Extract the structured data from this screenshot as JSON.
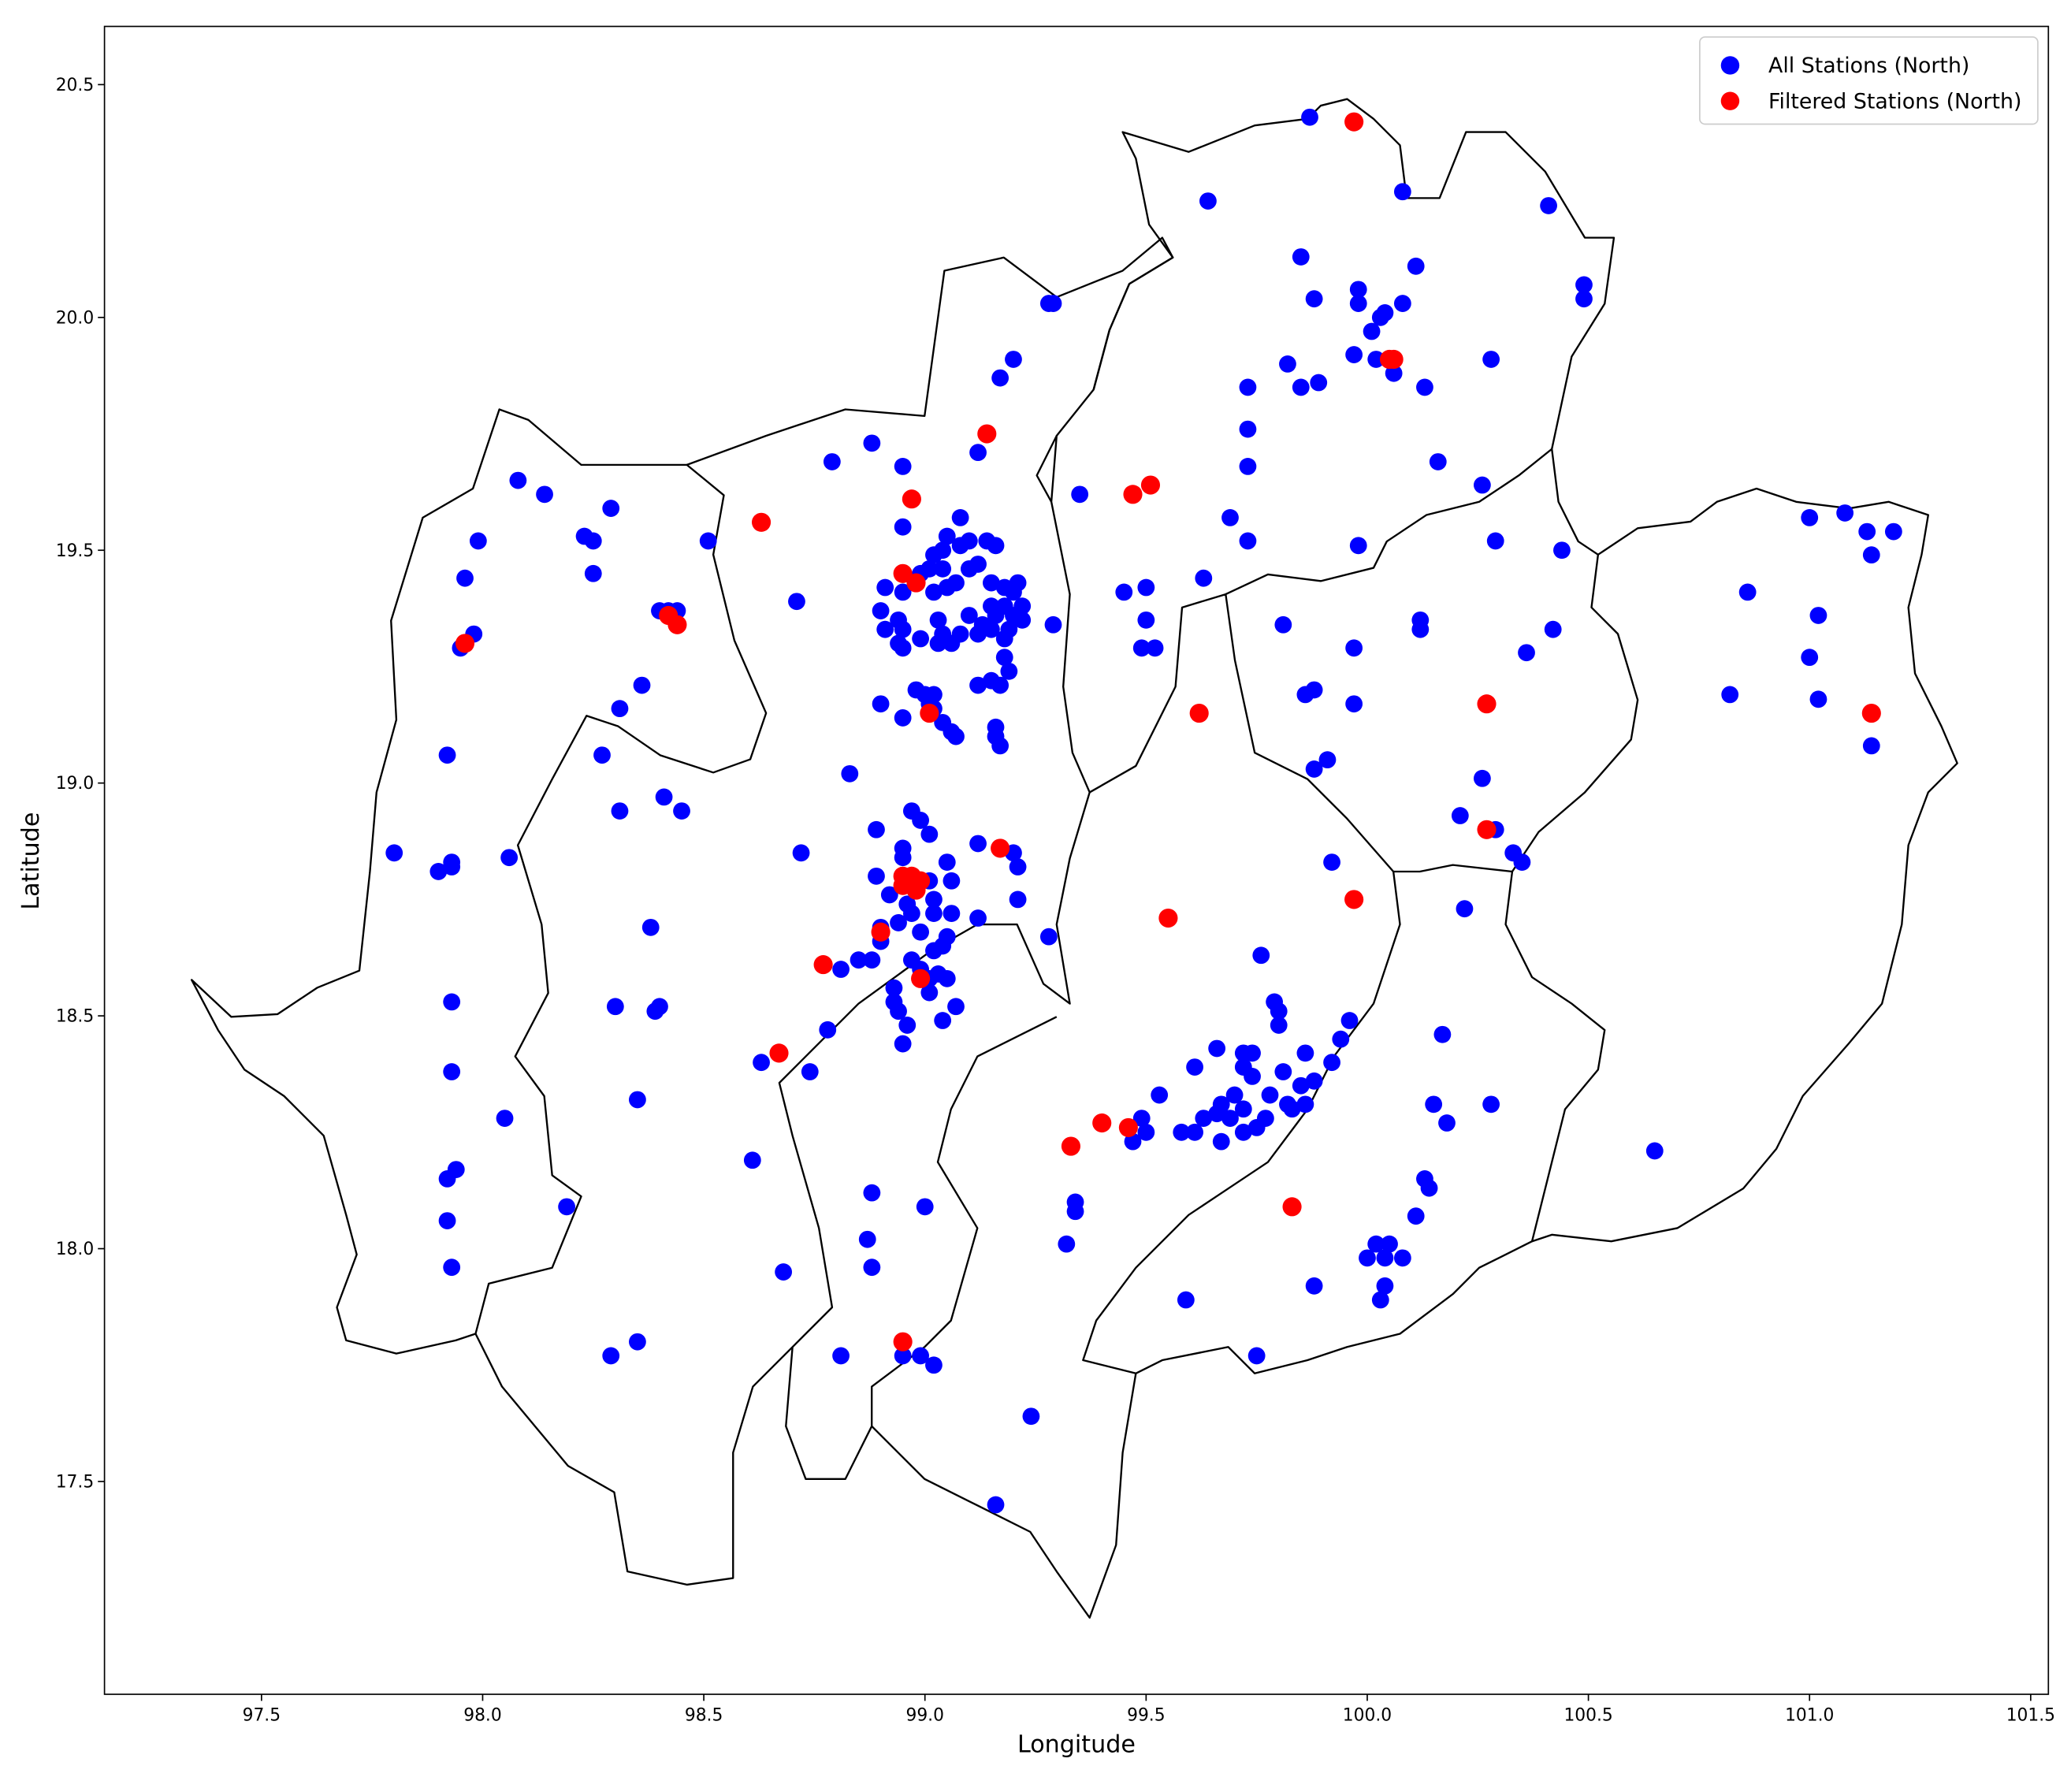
{
  "chart_data": {
    "type": "scatter",
    "xlabel": "Longitude",
    "ylabel": "Latitude",
    "xlim": [
      97.145,
      101.54
    ],
    "ylim": [
      17.043,
      20.625
    ],
    "xticks": [
      97.5,
      {
        "value": 98,
        "label": "98.0"
      },
      98.5,
      {
        "value": 99,
        "label": "99.0"
      },
      99.5,
      {
        "value": 100,
        "label": "100.0"
      },
      100.5,
      {
        "value": 101,
        "label": "101.0"
      },
      101.5
    ],
    "yticks": [
      17.5,
      {
        "value": 18,
        "label": "18.0"
      },
      18.5,
      {
        "value": 19,
        "label": "19.0"
      },
      19.5,
      {
        "value": 20,
        "label": "20.0"
      },
      20.5
    ],
    "legend": "upper right",
    "series": [
      {
        "name": "All Stations (North)",
        "color": "blue",
        "x": [
          99.87,
          99.64,
          100.08,
          100.41,
          99.85,
          100.11,
          100.49,
          100.49,
          99.88,
          99.98,
          99.98,
          100.08,
          100.04,
          100.03,
          100.01,
          99.97,
          100.02,
          100.06,
          100.28,
          99.82,
          99.89,
          99.85,
          99.73,
          100.13,
          99.73,
          99.73,
          100.16,
          100.26,
          99.69,
          99.73,
          99.98,
          100.29,
          100.44,
          99.63,
          99.5,
          99.45,
          99.5,
          99.81,
          100.12,
          100.12,
          100.42,
          99.97,
          100.36,
          99.49,
          99.52,
          99.88,
          99.86,
          99.97,
          100.27,
          99.91,
          99.88,
          100.26,
          100.21,
          100.29,
          100.33,
          100.35,
          99.92,
          100.22,
          100.86,
          101.0,
          101.08,
          101.13,
          101.19,
          101.14,
          101.02,
          101.0,
          100.82,
          101.02,
          101.14,
          100.65,
          99.76,
          99.79,
          99.8,
          99.8,
          99.96,
          99.94,
          99.92,
          99.86,
          99.81,
          99.85,
          99.88,
          99.82,
          99.86,
          99.83,
          99.78,
          99.74,
          99.72,
          99.72,
          99.66,
          99.61,
          99.74,
          99.7,
          99.67,
          99.66,
          99.63,
          99.61,
          99.69,
          99.72,
          99.72,
          99.77,
          99.75,
          99.67,
          99.58,
          99.53,
          99.49,
          99.5,
          99.47,
          100.17,
          100.15,
          100.18,
          100.28,
          100.13,
          100.14,
          100.11,
          100.02,
          100.05,
          100.0,
          100.04,
          100.08,
          100.04,
          100.03,
          99.88,
          99.59,
          99.75,
          99.34,
          99.34,
          99.32,
          99.24,
          99.16,
          99.02,
          98.99,
          98.95,
          98.81,
          99.0,
          98.88,
          98.87,
          98.88,
          98.68,
          98.61,
          98.63,
          98.74,
          98.78,
          98.81,
          98.85,
          98.88,
          98.9,
          98.9,
          98.89,
          98.92,
          98.95,
          98.95,
          98.95,
          98.89,
          98.97,
          98.99,
          99.01,
          99.01,
          99.02,
          99.02,
          98.99,
          98.97,
          98.96,
          98.94,
          99.02,
          99.05,
          99.04,
          99.06,
          99.06,
          99.05,
          99.12,
          99.12,
          99.2,
          99.21,
          99.21,
          99.28,
          98.97,
          98.99,
          99.01,
          99.03,
          99.05,
          99.07,
          99.04,
          98.93,
          98.93,
          98.94,
          98.96,
          98.95,
          99.01,
          98.83,
          98.72,
          98.9,
          98.95,
          98.98,
          99.0,
          99.02,
          99.01,
          99.02,
          99.04,
          99.06,
          99.07,
          99.16,
          99.16,
          99.17,
          99.12,
          99.15,
          99.17,
          99.19,
          99.18,
          99.18,
          99.19,
          99.12,
          99.15,
          99.16,
          99.15,
          99.18,
          99.2,
          99.22,
          99.22,
          99.2,
          99.18,
          99.21,
          99.15,
          99.16,
          99.14,
          99.1,
          99.08,
          99.05,
          99.04,
          99.08,
          99.1,
          99.12,
          99.07,
          99.05,
          99.02,
          99.01,
          98.99,
          99.02,
          99.04,
          98.95,
          98.95,
          98.91,
          98.9,
          98.94,
          98.95,
          98.91,
          98.94,
          98.95,
          98.99,
          99.03,
          99.04,
          99.03,
          99.06,
          99.08,
          99.1,
          99.13,
          99.29,
          98.95,
          98.88,
          98.79,
          99.12,
          99.17,
          99.2,
          99.28,
          99.29,
          99.35,
          98.71,
          98.51,
          98.23,
          98.25,
          98.25,
          98.29,
          98.14,
          98.08,
          97.99,
          97.96,
          97.98,
          97.95,
          98.4,
          98.42,
          98.44,
          98.36,
          98.31,
          98.27,
          97.92,
          98.31,
          98.41,
          98.45,
          98.06,
          97.93,
          97.93,
          97.9,
          97.8,
          98.38,
          98.4,
          98.39,
          98.3,
          97.93,
          97.93,
          98.35,
          98.05,
          97.94,
          97.92,
          97.92,
          97.93,
          98.19,
          98.35,
          98.29
        ],
        "values": [
          20.43,
          20.25,
          20.27,
          20.24,
          20.13,
          20.11,
          20.07,
          20.04,
          20.04,
          20.06,
          20.03,
          20.03,
          20.01,
          20.0,
          19.97,
          19.92,
          19.91,
          19.88,
          19.91,
          19.9,
          19.86,
          19.85,
          19.85,
          19.85,
          19.76,
          19.68,
          19.69,
          19.64,
          19.57,
          19.52,
          19.51,
          19.52,
          19.5,
          19.44,
          19.42,
          19.41,
          19.35,
          19.34,
          19.35,
          19.33,
          19.33,
          19.29,
          19.28,
          19.29,
          19.29,
          19.2,
          19.19,
          19.17,
          19.17,
          19.05,
          19.03,
          19.01,
          18.93,
          18.9,
          18.85,
          18.83,
          18.83,
          18.73,
          19.41,
          19.57,
          19.58,
          19.54,
          19.54,
          19.49,
          19.36,
          19.27,
          19.19,
          19.18,
          19.08,
          18.21,
          18.63,
          18.53,
          18.51,
          18.48,
          18.49,
          18.45,
          18.4,
          18.42,
          18.38,
          18.35,
          18.36,
          18.31,
          18.31,
          18.3,
          18.33,
          18.42,
          18.42,
          18.39,
          18.43,
          18.39,
          18.37,
          18.33,
          18.31,
          18.29,
          18.28,
          18.25,
          18.28,
          18.3,
          18.25,
          18.28,
          18.26,
          18.23,
          18.25,
          18.33,
          18.28,
          18.25,
          18.23,
          18.46,
          18.31,
          18.27,
          18.31,
          18.15,
          18.13,
          18.07,
          18.01,
          18.01,
          17.98,
          17.98,
          17.98,
          17.92,
          17.89,
          17.92,
          17.89,
          17.77,
          18.1,
          18.08,
          18.01,
          17.64,
          17.45,
          17.75,
          17.77,
          17.77,
          17.77,
          18.09,
          18.12,
          18.02,
          17.96,
          17.95,
          18.19,
          18.4,
          18.38,
          18.47,
          18.6,
          18.62,
          18.62,
          18.66,
          18.69,
          18.8,
          18.76,
          18.8,
          18.84,
          18.86,
          18.9,
          18.94,
          18.92,
          18.89,
          18.79,
          18.75,
          18.72,
          18.68,
          18.72,
          18.74,
          18.7,
          18.64,
          18.67,
          18.65,
          18.72,
          18.79,
          18.83,
          18.71,
          18.87,
          18.85,
          18.82,
          18.75,
          18.67,
          18.62,
          18.6,
          18.58,
          18.59,
          18.58,
          18.52,
          18.49,
          18.56,
          18.53,
          18.51,
          18.48,
          18.44,
          18.55,
          19.02,
          18.85,
          19.17,
          19.14,
          19.2,
          19.19,
          19.19,
          19.17,
          19.16,
          19.13,
          19.11,
          19.1,
          19.12,
          19.1,
          19.08,
          19.21,
          19.22,
          19.21,
          19.24,
          19.27,
          19.31,
          19.33,
          19.32,
          19.33,
          19.36,
          19.38,
          19.38,
          19.36,
          19.35,
          19.38,
          19.41,
          19.42,
          19.43,
          19.43,
          19.51,
          19.52,
          19.52,
          19.51,
          19.53,
          19.5,
          19.57,
          19.46,
          19.47,
          19.43,
          19.42,
          19.41,
          19.46,
          19.45,
          19.49,
          19.46,
          19.55,
          19.41,
          19.42,
          19.37,
          19.35,
          19.33,
          19.33,
          19.3,
          19.29,
          19.31,
          19.35,
          19.32,
          19.3,
          19.3,
          19.32,
          19.36,
          19.34,
          19.34,
          19.68,
          19.73,
          19.69,
          19.71,
          19.87,
          19.91,
          20.03,
          20.03,
          19.62,
          19.39,
          19.52,
          19.53,
          19.52,
          19.45,
          19.59,
          19.62,
          19.65,
          19.52,
          19.44,
          19.32,
          19.29,
          19.37,
          19.37,
          19.37,
          19.21,
          19.16,
          19.06,
          19.06,
          18.94,
          18.97,
          18.94,
          18.84,
          18.83,
          18.82,
          18.81,
          18.85,
          18.69,
          18.52,
          18.51,
          18.52,
          18.53,
          18.38,
          18.32,
          18.28,
          18.17,
          18.15,
          18.06,
          17.96,
          18.09,
          17.8,
          17.77
        ]
      },
      {
        "name": "Filtered Stations (North)",
        "color": "red",
        "x": [
          99.97,
          100.05,
          100.06,
          99.14,
          99.51,
          99.47,
          98.97,
          98.63,
          98.95,
          98.98,
          97.96,
          98.42,
          98.44,
          99.01,
          99.62,
          100.27,
          100.27,
          101.14,
          99.17,
          98.95,
          98.97,
          98.99,
          98.98,
          98.95,
          99.97,
          99.55,
          98.9,
          98.77,
          98.99,
          98.67,
          99.4,
          99.46,
          99.33,
          99.83,
          98.95
        ],
        "values": [
          20.42,
          19.91,
          19.91,
          19.75,
          19.64,
          19.62,
          19.61,
          19.56,
          19.45,
          19.43,
          19.3,
          19.36,
          19.34,
          19.15,
          19.15,
          19.17,
          18.9,
          19.15,
          18.86,
          18.8,
          18.8,
          18.79,
          18.77,
          18.78,
          18.75,
          18.71,
          18.68,
          18.61,
          18.58,
          18.42,
          18.27,
          18.26,
          18.22,
          18.09,
          17.8
        ]
      }
    ]
  }
}
